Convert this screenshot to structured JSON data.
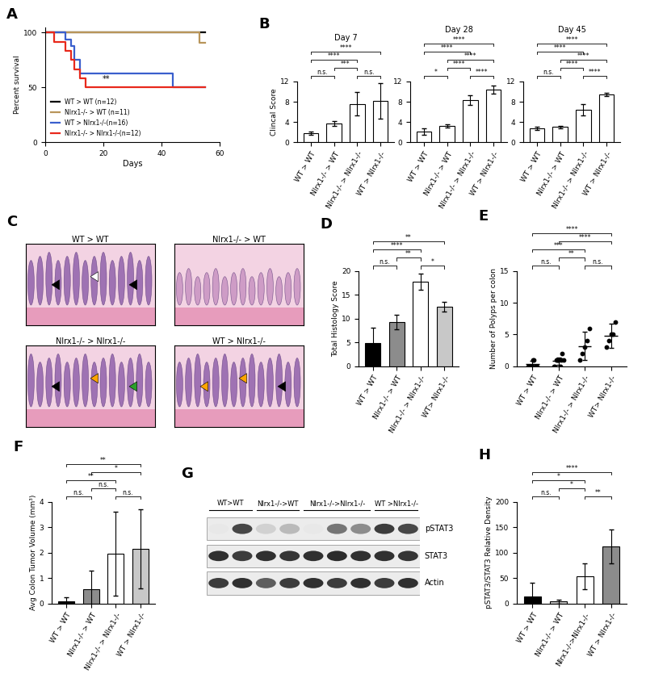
{
  "chart_data": [
    {
      "panel": "A",
      "type": "line",
      "xlabel": "Days",
      "ylabel": "Percent survival",
      "xlim": [
        0,
        60
      ],
      "xticks": [
        0,
        20,
        40,
        60
      ],
      "ylim": [
        0,
        105
      ],
      "yticks": [
        0,
        50,
        100
      ],
      "legend": "lower left",
      "series": [
        {
          "name": "WT > WT (n=12)",
          "color": "#000000",
          "x": [
            0,
            55
          ],
          "values": [
            100,
            100
          ]
        },
        {
          "name": "Nlrx1-/- > WT (n=11)",
          "color": "#b8955a",
          "x": [
            0,
            53,
            55
          ],
          "values": [
            100,
            91,
            91
          ]
        },
        {
          "name": "WT > Nlrx1-/-(n=16)",
          "color": "#3a5fcd",
          "x": [
            0,
            7,
            9,
            10,
            12,
            44,
            55
          ],
          "values": [
            100,
            94,
            87.5,
            75,
            62.5,
            50,
            50
          ]
        },
        {
          "name": "Nlrx1-/- > Nlrx1-/-(n=12)",
          "color": "#e8291c",
          "x": [
            0,
            3,
            7,
            9,
            10,
            12,
            14,
            55
          ],
          "values": [
            100,
            91.7,
            83.3,
            75,
            66.7,
            58.3,
            50,
            50
          ]
        }
      ],
      "annotations": [
        {
          "text": "**",
          "x": 21,
          "y": 54
        }
      ]
    },
    {
      "panel": "B",
      "type": "bar",
      "title": "Day 7",
      "ylabel": "Clincal Score",
      "categories": [
        "WT > WT",
        "Nlrx1-/- > WT",
        "Nlrx1-/- > Nlrx1-/-",
        "WT > Nlrx1-/-"
      ],
      "values": [
        1.8,
        3.7,
        7.6,
        8.1
      ],
      "errors": [
        0.3,
        0.5,
        2.3,
        3.5
      ],
      "colors": [
        "#ffffff",
        "#ffffff",
        "#ffffff",
        "#ffffff"
      ],
      "ylim": [
        0,
        12
      ],
      "yticks": [
        0,
        4,
        8,
        12
      ],
      "significance": [
        {
          "pair": [
            0,
            1
          ],
          "label": "n.s."
        },
        {
          "pair": [
            2,
            3
          ],
          "label": "n.s."
        },
        {
          "pair": [
            1,
            2
          ],
          "label": "***"
        },
        {
          "pair": [
            0,
            2
          ],
          "label": "****"
        },
        {
          "pair": [
            0,
            3
          ],
          "label": "****"
        }
      ]
    },
    {
      "type": "bar",
      "title": "Day 28",
      "categories": [
        "WT > WT",
        "Nlrx1-/- > WT",
        "Nlrx1-/- > Nlrx1-/-",
        "WT > Nlrx1-/-"
      ],
      "values": [
        2.1,
        3.2,
        8.3,
        10.4
      ],
      "errors": [
        0.6,
        0.3,
        1.0,
        0.8
      ],
      "colors": [
        "#ffffff",
        "#ffffff",
        "#ffffff",
        "#ffffff"
      ],
      "ylim": [
        0,
        12
      ],
      "yticks": [
        0,
        4,
        8,
        12
      ],
      "significance": [
        {
          "pair": [
            0,
            1
          ],
          "label": "*"
        },
        {
          "pair": [
            2,
            3
          ],
          "label": "****"
        },
        {
          "pair": [
            1,
            2
          ],
          "label": "****"
        },
        {
          "pair": [
            1,
            3
          ],
          "label": "****"
        },
        {
          "pair": [
            0,
            2
          ],
          "label": "****"
        },
        {
          "pair": [
            0,
            3
          ],
          "label": "****"
        }
      ]
    },
    {
      "type": "bar",
      "title": "Day 45",
      "categories": [
        "WT > WT",
        "Nlrx1-/- > WT",
        "Nlrx1-/- > Nlrx1-/-",
        "WT > Nlrx1-/-"
      ],
      "values": [
        2.7,
        3.0,
        6.4,
        9.4
      ],
      "errors": [
        0.3,
        0.3,
        1.1,
        0.3
      ],
      "colors": [
        "#ffffff",
        "#ffffff",
        "#ffffff",
        "#ffffff"
      ],
      "ylim": [
        0,
        12
      ],
      "yticks": [
        0,
        4,
        8,
        12
      ],
      "significance": [
        {
          "pair": [
            0,
            1
          ],
          "label": "n.s."
        },
        {
          "pair": [
            2,
            3
          ],
          "label": "****"
        },
        {
          "pair": [
            1,
            2
          ],
          "label": "****"
        },
        {
          "pair": [
            1,
            3
          ],
          "label": "****"
        },
        {
          "pair": [
            0,
            2
          ],
          "label": "****"
        },
        {
          "pair": [
            0,
            3
          ],
          "label": "****"
        }
      ]
    },
    {
      "panel": "D",
      "type": "bar",
      "ylabel": "Total Histology Score",
      "categories": [
        "WT > WT",
        "Nlrx1-/- > WT",
        "Nlrx1-/- > Nlrx1-/-",
        "WT> Nlrx1-/-"
      ],
      "values": [
        4.8,
        9.3,
        17.8,
        12.5
      ],
      "errors": [
        3.3,
        1.6,
        1.7,
        1.0
      ],
      "colors": [
        "#000000",
        "#8c8c8c",
        "#ffffff",
        "#c8c8c8"
      ],
      "ylim": [
        0,
        20
      ],
      "yticks": [
        0,
        5,
        10,
        15,
        20
      ],
      "significance": [
        {
          "pair": [
            0,
            1
          ],
          "label": "n.s."
        },
        {
          "pair": [
            2,
            3
          ],
          "label": "*"
        },
        {
          "pair": [
            1,
            2
          ],
          "label": "**"
        },
        {
          "pair": [
            0,
            2
          ],
          "label": "****"
        },
        {
          "pair": [
            0,
            3
          ],
          "label": "**"
        }
      ]
    },
    {
      "panel": "E",
      "type": "scatter",
      "ylabel": "Number of Polyps per colon",
      "categories": [
        "WT > WT",
        "Nlrx1-/- > WT",
        "Nlrx1-/- > Nlrx1-/-",
        "WT> Nlrx1-/-"
      ],
      "values": [
        0.3,
        0.8,
        3.2,
        4.8
      ],
      "errors": [
        0.5,
        0.6,
        2.2,
        1.9
      ],
      "points": [
        [
          0,
          0,
          0,
          0,
          0,
          1,
          1,
          0,
          0,
          0
        ],
        [
          0,
          0,
          1,
          1,
          1,
          1,
          0,
          1,
          2,
          1
        ],
        [
          1,
          2,
          3,
          4,
          6
        ],
        [
          3,
          4,
          5,
          5,
          7
        ]
      ],
      "ylim": [
        0,
        15
      ],
      "yticks": [
        0,
        5,
        10,
        15
      ],
      "significance": [
        {
          "pair": [
            0,
            1
          ],
          "label": "n.s."
        },
        {
          "pair": [
            2,
            3
          ],
          "label": "n.s."
        },
        {
          "pair": [
            1,
            2
          ],
          "label": "**"
        },
        {
          "pair": [
            0,
            2
          ],
          "label": "***"
        },
        {
          "pair": [
            1,
            3
          ],
          "label": "****"
        },
        {
          "pair": [
            0,
            3
          ],
          "label": "****"
        }
      ]
    },
    {
      "panel": "F",
      "type": "bar",
      "ylabel": "Avg Colon Tumor Volume (mm³)",
      "categories": [
        "WT > WT",
        "Nlrx1-/- > WT",
        "Nlrx1-/- > Nlrx1-/-",
        "WT > Nlrx1-/-"
      ],
      "values": [
        0.08,
        0.55,
        1.95,
        2.15
      ],
      "errors": [
        0.15,
        0.75,
        1.65,
        1.55
      ],
      "colors": [
        "#000000",
        "#8c8c8c",
        "#ffffff",
        "#c8c8c8"
      ],
      "ylim": [
        0,
        4
      ],
      "yticks": [
        0,
        1,
        2,
        3,
        4
      ],
      "significance": [
        {
          "pair": [
            0,
            1
          ],
          "label": "n.s."
        },
        {
          "pair": [
            2,
            3
          ],
          "label": "n.s."
        },
        {
          "pair": [
            1,
            2
          ],
          "label": "n.s."
        },
        {
          "pair": [
            0,
            2
          ],
          "label": "**"
        },
        {
          "pair": [
            1,
            3
          ],
          "label": "*"
        },
        {
          "pair": [
            0,
            3
          ],
          "label": "**"
        }
      ]
    },
    {
      "panel": "H",
      "type": "bar",
      "ylabel": "pSTAT3/STAT3 Relative Density",
      "categories": [
        "WT > WT",
        "Nlrx1-/- > WT",
        "Nlrx1-/->Nlrx1-/-",
        "WT > Nlrx1-/-"
      ],
      "values": [
        13,
        4,
        53,
        112
      ],
      "errors": [
        27,
        4,
        25,
        33
      ],
      "colors": [
        "#000000",
        "#c8c8c8",
        "#ffffff",
        "#8c8c8c"
      ],
      "ylim": [
        0,
        200
      ],
      "yticks": [
        0,
        50,
        100,
        150,
        200
      ],
      "significance": [
        {
          "pair": [
            0,
            1
          ],
          "label": "n.s."
        },
        {
          "pair": [
            1,
            2
          ],
          "label": "*"
        },
        {
          "pair": [
            2,
            3
          ],
          "label": "**"
        },
        {
          "pair": [
            0,
            2
          ],
          "label": "*"
        },
        {
          "pair": [
            0,
            3
          ],
          "label": "****"
        }
      ]
    }
  ],
  "histology": {
    "panel": "C",
    "images": [
      {
        "title": "WT > WT"
      },
      {
        "title": "Nlrx1-/- > WT"
      },
      {
        "title": "Nlrx1-/- > Nlrx1-/-"
      },
      {
        "title": "WT > Nlrx1-/-"
      }
    ]
  },
  "western_blot": {
    "panel": "G",
    "groups": [
      {
        "label": "WT>WT",
        "lanes": 2
      },
      {
        "label": "Nlrx1-/->WT",
        "lanes": 2
      },
      {
        "label": "Nlrx1-/->Nlrx1-/-",
        "lanes": 3
      },
      {
        "label": "WT >Nlrx1-/-",
        "lanes": 2
      }
    ],
    "rows": [
      {
        "label": "pSTAT3",
        "bands": [
          0.1,
          0.8,
          0.2,
          0.3,
          0.1,
          0.6,
          0.5,
          0.85,
          0.8
        ]
      },
      {
        "label": "STAT3",
        "bands": [
          0.9,
          0.85,
          0.9,
          0.88,
          0.9,
          0.92,
          0.9,
          0.9,
          0.88
        ]
      },
      {
        "label": "Actin",
        "bands": [
          0.85,
          0.9,
          0.7,
          0.85,
          0.9,
          0.85,
          0.9,
          0.85,
          0.9
        ]
      }
    ]
  }
}
